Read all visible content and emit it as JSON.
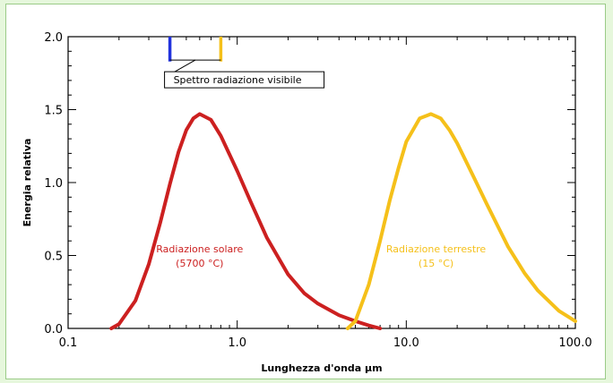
{
  "chart_data": {
    "type": "line",
    "title": "",
    "xlabel": "Lunghezza d'onda  µm",
    "ylabel": "Energia relativa",
    "x_scale": "log",
    "xlim": [
      0.1,
      100.0
    ],
    "ylim": [
      0.0,
      2.0
    ],
    "x_ticks": [
      "0.1",
      "1.0",
      "10.0",
      "100.0"
    ],
    "y_ticks": [
      "0.0",
      "0.5",
      "1.0",
      "1.5",
      "2.0"
    ],
    "grid": false,
    "colors": {
      "solar": "#cc2020",
      "terrestrial": "#f5c01a",
      "visible_violet": "#2233dd",
      "visible_red": "#f5c01a"
    },
    "series": [
      {
        "key": "solar",
        "x": [
          0.18,
          0.2,
          0.25,
          0.3,
          0.35,
          0.4,
          0.45,
          0.5,
          0.55,
          0.6,
          0.7,
          0.8,
          1.0,
          1.2,
          1.5,
          2.0,
          2.5,
          3.0,
          4.0,
          5.0,
          6.0,
          7.0
        ],
        "values": [
          0.0,
          0.03,
          0.19,
          0.44,
          0.72,
          0.99,
          1.21,
          1.36,
          1.44,
          1.47,
          1.43,
          1.32,
          1.08,
          0.87,
          0.62,
          0.37,
          0.24,
          0.17,
          0.09,
          0.05,
          0.02,
          0.0
        ]
      },
      {
        "key": "terrestrial",
        "x": [
          4.5,
          5.0,
          6.0,
          7.0,
          8.0,
          9.0,
          10.0,
          12.0,
          14.0,
          16.0,
          18.0,
          20.0,
          25.0,
          30.0,
          40.0,
          50.0,
          60.0,
          80.0,
          100.0
        ],
        "values": [
          0.0,
          0.05,
          0.3,
          0.6,
          0.88,
          1.1,
          1.28,
          1.44,
          1.47,
          1.44,
          1.36,
          1.27,
          1.04,
          0.85,
          0.56,
          0.38,
          0.26,
          0.12,
          0.05
        ]
      }
    ],
    "annotations": {
      "solar_label": [
        "Radiazione solare",
        "(5700 °C)"
      ],
      "terrestrial_label": [
        "Radiazione terrestre",
        "(15 °C)"
      ],
      "visible_label": "Spettro radiazione visibile",
      "visible_range": [
        0.4,
        0.8
      ]
    }
  }
}
